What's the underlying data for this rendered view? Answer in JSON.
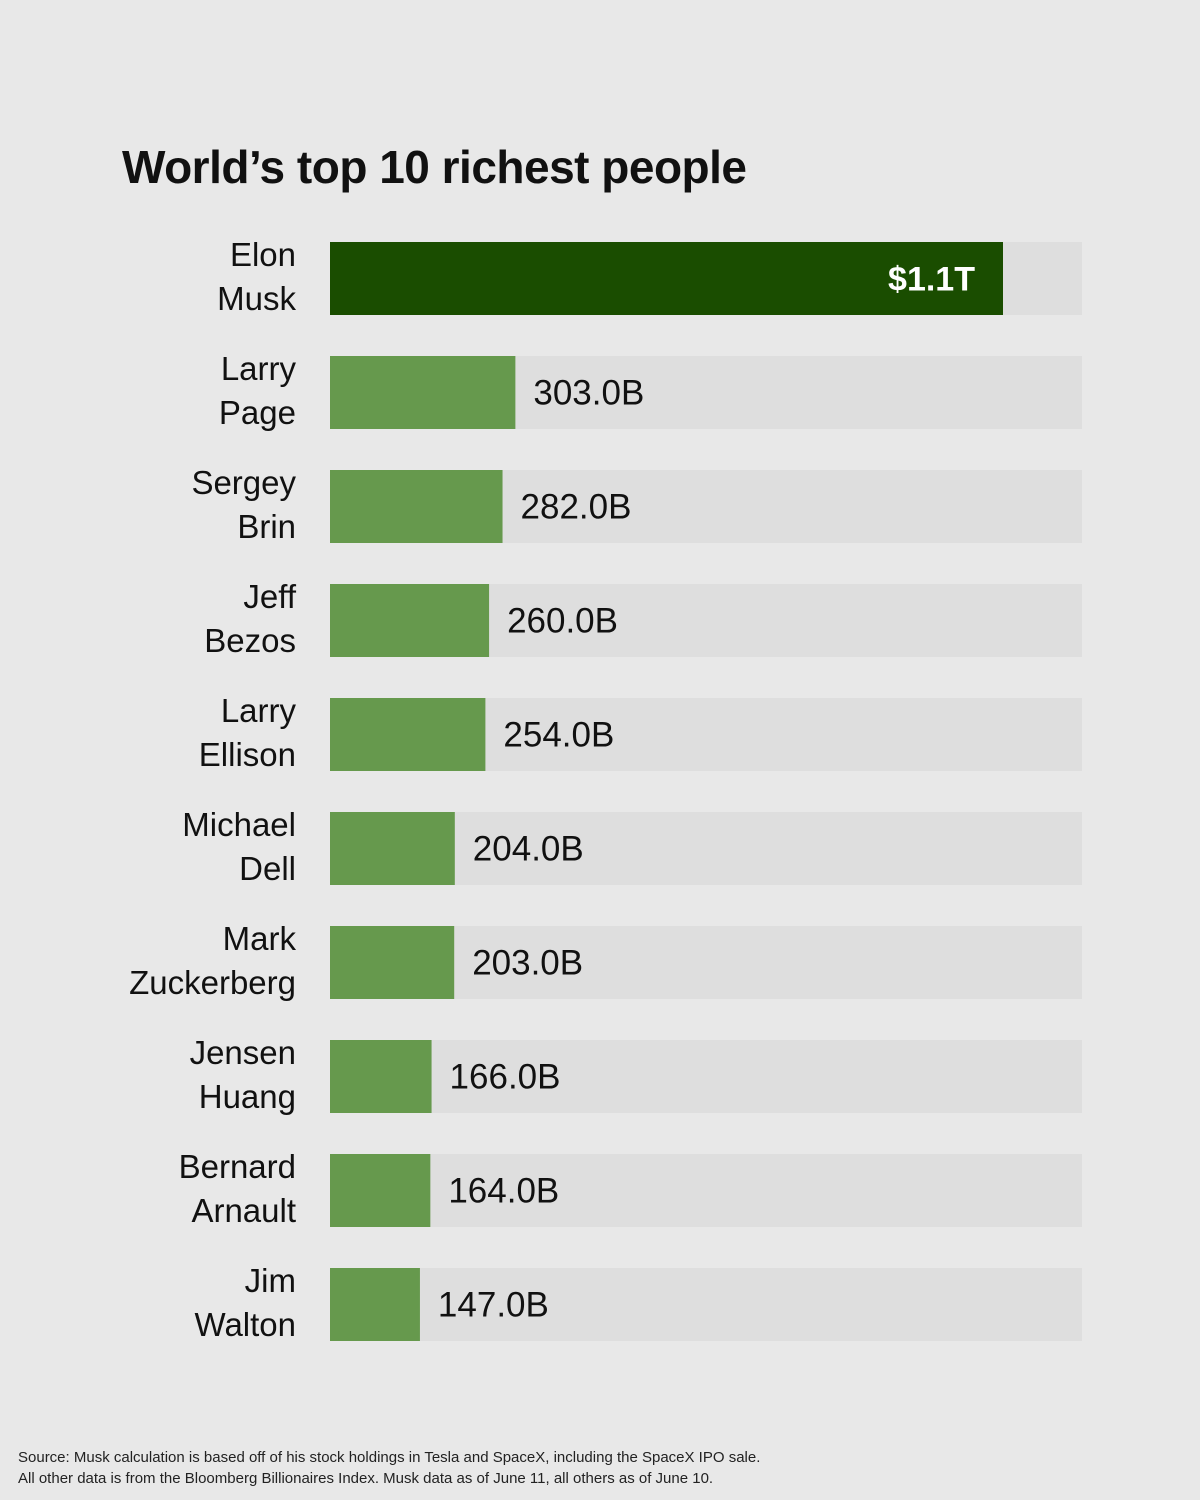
{
  "chart_data": {
    "type": "bar",
    "orientation": "horizontal",
    "title": "World’s top 10 richest people",
    "xlabel": "",
    "ylabel": "",
    "xlim": [
      0,
      1100
    ],
    "units": "billions of dollars",
    "grid": false,
    "legend": "none",
    "categories": [
      [
        "Elon",
        "Musk"
      ],
      [
        "Larry",
        "Page"
      ],
      [
        "Sergey",
        "Brin"
      ],
      [
        "Jeff",
        "Bezos"
      ],
      [
        "Larry",
        "Ellison"
      ],
      [
        "Michael",
        "Dell"
      ],
      [
        "Mark",
        "Zuckerberg"
      ],
      [
        "Jensen",
        "Huang"
      ],
      [
        "Bernard",
        "Arnault"
      ],
      [
        "Jim",
        "Walton"
      ]
    ],
    "values": [
      1100,
      303,
      282,
      260,
      254,
      204,
      203,
      166,
      164,
      147
    ],
    "data_labels": [
      "$1.1T",
      "303.0B",
      "282.0B",
      "260.0B",
      "254.0B",
      "204.0B",
      "203.0B",
      "166.0B",
      "164.0B",
      "147.0B"
    ],
    "colors": {
      "highlight": "#1a4d00",
      "bar": "#66994d",
      "track": "#dedede",
      "highlight_label": "#ffffff",
      "label": "#111111"
    }
  },
  "source": {
    "line1": "Source: Musk calculation is based off of his stock holdings in Tesla and SpaceX, including the SpaceX IPO sale.",
    "line2": "All other data is from the Bloomberg Billionaires Index. Musk data as of June 11, all others as of June 10."
  }
}
